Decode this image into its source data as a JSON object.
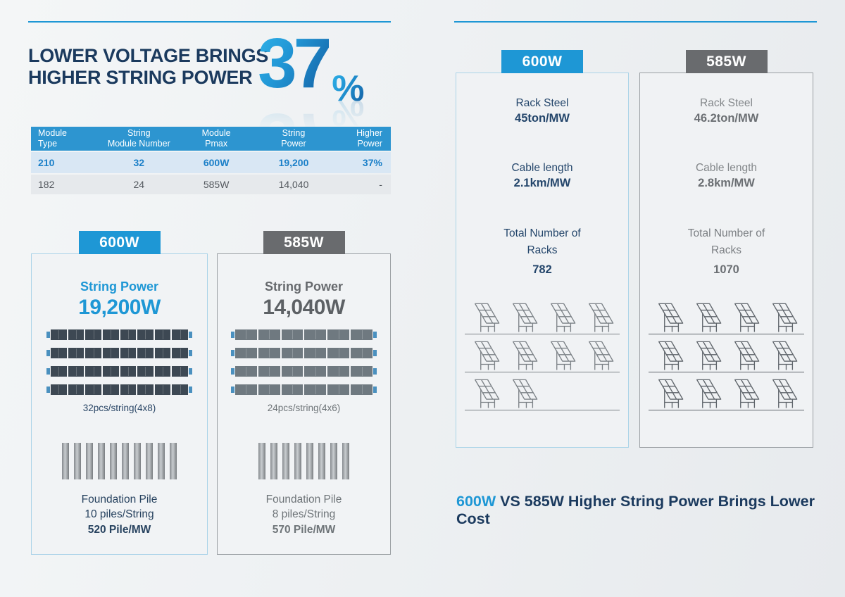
{
  "colors": {
    "accent_blue": "#1e97d5",
    "accent_gray": "#696b6e",
    "navy": "#1b3a5e",
    "table_header_bg": "#2d95d0",
    "table_row1_bg": "#d9e7f4",
    "table_row1_text": "#1a7fc8",
    "table_row2_bg": "#e6e9ec",
    "cap_blue": "#4a90bf"
  },
  "left": {
    "title_line1": "LOWER VOLTAGE BRINGS",
    "title_line2": "HIGHER STRING POWER",
    "highlight": {
      "value": "37",
      "unit": "%"
    },
    "table": {
      "headers": [
        "Module\nType",
        "String\nModule Number",
        "Module\nPmax",
        "String\nPower",
        "Higher\nPower"
      ],
      "rows": [
        {
          "module_type": "210",
          "string_module_number": "32",
          "module_pmax": "600W",
          "string_power": "19,200",
          "higher_power": "37%"
        },
        {
          "module_type": "182",
          "string_module_number": "24",
          "module_pmax": "585W",
          "string_power": "14,040",
          "higher_power": "-"
        }
      ]
    },
    "cards": [
      {
        "tab": "600W",
        "string_power_label": "String Power",
        "string_power_value": "19,200W",
        "module_rows": 4,
        "modules_per_row": 8,
        "module_color": "#3d4853",
        "modules_caption": "32pcs/string(4x8)",
        "pile_count": 10,
        "foundation_label": "Foundation Pile",
        "piles_per_string": "10 piles/String",
        "pile_per_mw": "520 Pile/MW"
      },
      {
        "tab": "585W",
        "string_power_label": "String Power",
        "string_power_value": "14,040W",
        "module_rows": 4,
        "modules_per_row": 6,
        "module_color": "#6f7980",
        "modules_caption": "24pcs/string(4x6)",
        "pile_count": 8,
        "foundation_label": "Foundation Pile",
        "piles_per_string": "8 piles/String",
        "pile_per_mw": "570 Pile/MW"
      }
    ]
  },
  "right": {
    "cards": [
      {
        "tab": "600W",
        "rack_steel_label": "Rack Steel",
        "rack_steel_value": "45ton/MW",
        "cable_label": "Cable length",
        "cable_value": "2.1km/MW",
        "racks_label_line1": "Total Number of",
        "racks_label_line2": "Racks",
        "racks_value": "782",
        "rack_rows": [
          4,
          4,
          2
        ],
        "icon_color": "#7c8287"
      },
      {
        "tab": "585W",
        "rack_steel_label": "Rack Steel",
        "rack_steel_value": "46.2ton/MW",
        "cable_label": "Cable length",
        "cable_value": "2.8km/MW",
        "racks_label_line1": "Total Number of",
        "racks_label_line2": "Racks",
        "racks_value": "1070",
        "rack_rows": [
          4,
          4,
          4
        ],
        "icon_color": "#5f656b"
      }
    ],
    "footer": {
      "highlight": "600W",
      "text": " VS 585W Higher String Power Brings Lower Cost"
    }
  }
}
